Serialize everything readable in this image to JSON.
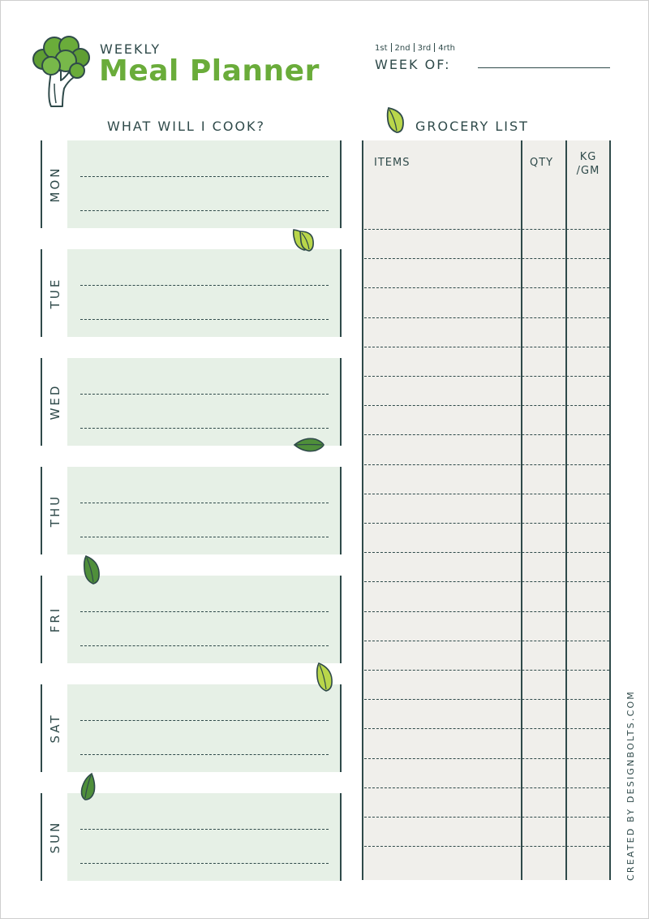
{
  "header": {
    "title_small": "WEEKLY",
    "title_big": "Meal Planner",
    "week_options": [
      "1st",
      "2nd",
      "3rd",
      "4rth"
    ],
    "week_of_label": "WEEK OF:"
  },
  "cook_section": {
    "heading": "WHAT WILL I COOK?",
    "days": [
      "MON",
      "TUE",
      "WED",
      "THU",
      "FRI",
      "SAT",
      "SUN"
    ]
  },
  "grocery": {
    "heading": "GROCERY LIST",
    "columns": [
      "ITEMS",
      "QTY",
      "KG /GM"
    ],
    "row_count": 22
  },
  "footer": {
    "credit": "CREATED BY DESIGNBOLTS.COM"
  },
  "colors": {
    "accent": "#6aac3a",
    "dark": "#2f4a4a",
    "day_fill": "#e6f0e6",
    "grocery_fill": "#f0efeb"
  }
}
